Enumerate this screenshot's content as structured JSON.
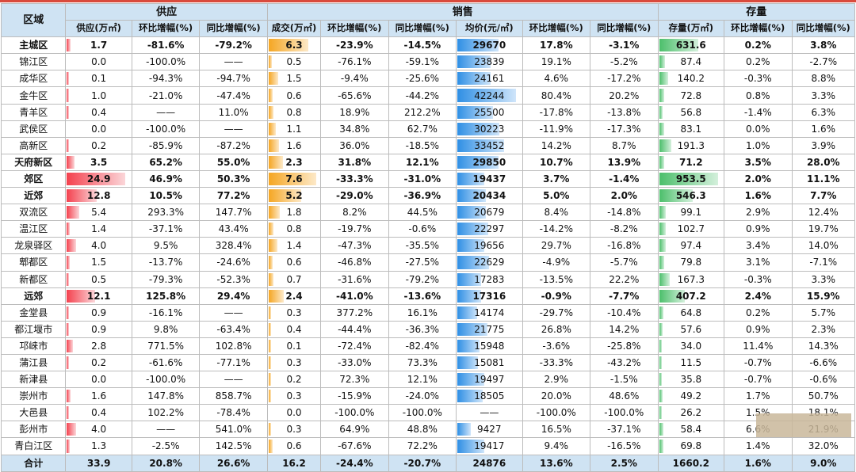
{
  "header": {
    "region": "区域",
    "supply": "供应",
    "sales": "销售",
    "stock": "存量",
    "columns": [
      "供应(万㎡)",
      "环比增幅(%)",
      "同比增幅(%)",
      "成交(万㎡)",
      "环比增幅(%)",
      "同比增幅(%)",
      "均价(元/㎡)",
      "环比增幅(%)",
      "同比增幅(%)",
      "存量(万㎡)",
      "环比增幅(%)",
      "同比增幅(%)"
    ]
  },
  "colors": {
    "supply_bar": "#f4414e",
    "sales_bar": "#f5a623",
    "price_bar": "#2f8fe4",
    "stock_bar": "#4cbf6b",
    "header_bg": "#cfe3f3"
  },
  "rows": [
    {
      "region": "主城区",
      "bold": true,
      "cells": [
        "1.7",
        "-81.6%",
        "-79.2%",
        "6.3",
        "-23.9%",
        "-14.5%",
        "29670",
        "17.8%",
        "-3.1%",
        "631.6",
        "0.2%",
        "3.8%"
      ],
      "bars": {
        "supply": 1.7,
        "sales": 6.3,
        "price": 29670,
        "stock": 631.6
      }
    },
    {
      "region": "锦江区",
      "bold": false,
      "cells": [
        "0.0",
        "-100.0%",
        "——",
        "0.5",
        "-76.1%",
        "-59.1%",
        "23839",
        "19.1%",
        "-5.2%",
        "87.4",
        "0.2%",
        "-2.7%"
      ],
      "bars": {
        "supply": 0.0,
        "sales": 0.5,
        "price": 23839,
        "stock": 87.4
      }
    },
    {
      "region": "成华区",
      "bold": false,
      "cells": [
        "0.1",
        "-94.3%",
        "-94.7%",
        "1.5",
        "-9.4%",
        "-25.6%",
        "24161",
        "4.6%",
        "-17.2%",
        "140.2",
        "-0.3%",
        "8.8%"
      ],
      "bars": {
        "supply": 0.1,
        "sales": 1.5,
        "price": 24161,
        "stock": 140.2
      }
    },
    {
      "region": "金牛区",
      "bold": false,
      "cells": [
        "1.0",
        "-21.0%",
        "-47.4%",
        "0.6",
        "-65.6%",
        "-44.2%",
        "42244",
        "80.4%",
        "20.2%",
        "72.8",
        "0.8%",
        "3.3%"
      ],
      "bars": {
        "supply": 1.0,
        "sales": 0.6,
        "price": 42244,
        "stock": 72.8
      }
    },
    {
      "region": "青羊区",
      "bold": false,
      "cells": [
        "0.4",
        "——",
        "11.0%",
        "0.8",
        "18.9%",
        "212.2%",
        "25500",
        "-17.8%",
        "-13.8%",
        "56.8",
        "-1.4%",
        "6.3%"
      ],
      "bars": {
        "supply": 0.4,
        "sales": 0.8,
        "price": 25500,
        "stock": 56.8
      }
    },
    {
      "region": "武侯区",
      "bold": false,
      "cells": [
        "0.0",
        "-100.0%",
        "——",
        "1.1",
        "34.8%",
        "62.7%",
        "30223",
        "-11.9%",
        "-17.3%",
        "83.1",
        "0.0%",
        "1.6%"
      ],
      "bars": {
        "supply": 0.0,
        "sales": 1.1,
        "price": 30223,
        "stock": 83.1
      }
    },
    {
      "region": "高新区",
      "bold": false,
      "cells": [
        "0.2",
        "-85.9%",
        "-87.2%",
        "1.6",
        "36.0%",
        "-18.5%",
        "33452",
        "14.2%",
        "8.7%",
        "191.3",
        "1.0%",
        "3.9%"
      ],
      "bars": {
        "supply": 0.2,
        "sales": 1.6,
        "price": 33452,
        "stock": 191.3
      }
    },
    {
      "region": "天府新区",
      "bold": true,
      "cells": [
        "3.5",
        "65.2%",
        "55.0%",
        "2.3",
        "31.8%",
        "12.1%",
        "29850",
        "10.7%",
        "13.9%",
        "71.2",
        "3.5%",
        "28.0%"
      ],
      "bars": {
        "supply": 3.5,
        "sales": 2.3,
        "price": 29850,
        "stock": 71.2
      }
    },
    {
      "region": "郊区",
      "bold": true,
      "cells": [
        "24.9",
        "46.9%",
        "50.3%",
        "7.6",
        "-33.3%",
        "-31.0%",
        "19437",
        "3.7%",
        "-1.4%",
        "953.5",
        "2.0%",
        "11.1%"
      ],
      "bars": {
        "supply": 24.9,
        "sales": 7.6,
        "price": 19437,
        "stock": 953.5
      }
    },
    {
      "region": "近郊",
      "bold": true,
      "cells": [
        "12.8",
        "10.5%",
        "77.2%",
        "5.2",
        "-29.0%",
        "-36.9%",
        "20434",
        "5.0%",
        "2.0%",
        "546.3",
        "1.6%",
        "7.7%"
      ],
      "bars": {
        "supply": 12.8,
        "sales": 5.2,
        "price": 20434,
        "stock": 546.3
      }
    },
    {
      "region": "双流区",
      "bold": false,
      "cells": [
        "5.4",
        "293.3%",
        "147.7%",
        "1.8",
        "8.2%",
        "44.5%",
        "20679",
        "8.4%",
        "-14.8%",
        "99.1",
        "2.9%",
        "12.4%"
      ],
      "bars": {
        "supply": 5.4,
        "sales": 1.8,
        "price": 20679,
        "stock": 99.1
      }
    },
    {
      "region": "温江区",
      "bold": false,
      "cells": [
        "1.4",
        "-37.1%",
        "43.4%",
        "0.8",
        "-19.7%",
        "-0.6%",
        "22297",
        "-14.2%",
        "-8.2%",
        "102.7",
        "0.9%",
        "19.7%"
      ],
      "bars": {
        "supply": 1.4,
        "sales": 0.8,
        "price": 22297,
        "stock": 102.7
      }
    },
    {
      "region": "龙泉驿区",
      "bold": false,
      "cells": [
        "4.0",
        "9.5%",
        "328.4%",
        "1.4",
        "-47.3%",
        "-35.5%",
        "19656",
        "29.7%",
        "-16.8%",
        "97.4",
        "3.4%",
        "14.0%"
      ],
      "bars": {
        "supply": 4.0,
        "sales": 1.4,
        "price": 19656,
        "stock": 97.4
      }
    },
    {
      "region": "郫都区",
      "bold": false,
      "cells": [
        "1.5",
        "-13.7%",
        "-24.6%",
        "0.6",
        "-46.8%",
        "-27.5%",
        "22629",
        "-4.9%",
        "-5.7%",
        "79.8",
        "3.1%",
        "-7.1%"
      ],
      "bars": {
        "supply": 1.5,
        "sales": 0.6,
        "price": 22629,
        "stock": 79.8
      }
    },
    {
      "region": "新都区",
      "bold": false,
      "cells": [
        "0.5",
        "-79.3%",
        "-52.3%",
        "0.7",
        "-31.6%",
        "-79.2%",
        "17283",
        "-13.5%",
        "22.2%",
        "167.3",
        "-0.3%",
        "3.3%"
      ],
      "bars": {
        "supply": 0.5,
        "sales": 0.7,
        "price": 17283,
        "stock": 167.3
      }
    },
    {
      "region": "远郊",
      "bold": true,
      "cells": [
        "12.1",
        "125.8%",
        "29.4%",
        "2.4",
        "-41.0%",
        "-13.6%",
        "17316",
        "-0.9%",
        "-7.7%",
        "407.2",
        "2.4%",
        "15.9%"
      ],
      "bars": {
        "supply": 12.1,
        "sales": 2.4,
        "price": 17316,
        "stock": 407.2
      }
    },
    {
      "region": "金堂县",
      "bold": false,
      "cells": [
        "0.9",
        "-16.1%",
        "——",
        "0.3",
        "377.2%",
        "16.1%",
        "14174",
        "-29.7%",
        "-10.4%",
        "64.8",
        "0.2%",
        "5.7%"
      ],
      "bars": {
        "supply": 0.9,
        "sales": 0.3,
        "price": 14174,
        "stock": 64.8
      }
    },
    {
      "region": "都江堰市",
      "bold": false,
      "cells": [
        "0.9",
        "9.8%",
        "-63.4%",
        "0.4",
        "-44.4%",
        "-36.3%",
        "21775",
        "26.8%",
        "14.2%",
        "57.6",
        "0.9%",
        "2.3%"
      ],
      "bars": {
        "supply": 0.9,
        "sales": 0.4,
        "price": 21775,
        "stock": 57.6
      }
    },
    {
      "region": "邛崃市",
      "bold": false,
      "cells": [
        "2.8",
        "771.5%",
        "102.8%",
        "0.1",
        "-72.4%",
        "-82.4%",
        "15948",
        "-3.6%",
        "-25.8%",
        "34.0",
        "11.4%",
        "14.3%"
      ],
      "bars": {
        "supply": 2.8,
        "sales": 0.1,
        "price": 15948,
        "stock": 34.0
      }
    },
    {
      "region": "蒲江县",
      "bold": false,
      "cells": [
        "0.2",
        "-61.6%",
        "-77.1%",
        "0.3",
        "-33.0%",
        "73.3%",
        "15081",
        "-33.3%",
        "-43.2%",
        "11.5",
        "-0.7%",
        "-6.6%"
      ],
      "bars": {
        "supply": 0.2,
        "sales": 0.3,
        "price": 15081,
        "stock": 11.5
      }
    },
    {
      "region": "新津县",
      "bold": false,
      "cells": [
        "0.0",
        "-100.0%",
        "——",
        "0.2",
        "72.3%",
        "12.1%",
        "19497",
        "2.9%",
        "-1.5%",
        "35.8",
        "-0.7%",
        "-0.6%"
      ],
      "bars": {
        "supply": 0.0,
        "sales": 0.2,
        "price": 19497,
        "stock": 35.8
      }
    },
    {
      "region": "崇州市",
      "bold": false,
      "cells": [
        "1.6",
        "147.8%",
        "858.7%",
        "0.3",
        "-15.9%",
        "-24.0%",
        "18505",
        "20.0%",
        "48.6%",
        "49.2",
        "1.7%",
        "50.7%"
      ],
      "bars": {
        "supply": 1.6,
        "sales": 0.3,
        "price": 18505,
        "stock": 49.2
      }
    },
    {
      "region": "大邑县",
      "bold": false,
      "cells": [
        "0.4",
        "102.2%",
        "-78.4%",
        "0.0",
        "-100.0%",
        "-100.0%",
        "——",
        "-100.0%",
        "-100.0%",
        "26.2",
        "1.5%",
        "18.1%"
      ],
      "bars": {
        "supply": 0.4,
        "sales": 0.0,
        "price": 0,
        "stock": 26.2
      }
    },
    {
      "region": "彭州市",
      "bold": false,
      "cells": [
        "4.0",
        "——",
        "541.0%",
        "0.3",
        "64.9%",
        "48.8%",
        "9427",
        "16.5%",
        "-37.1%",
        "58.4",
        "6.6%",
        "21.9%"
      ],
      "bars": {
        "supply": 4.0,
        "sales": 0.3,
        "price": 9427,
        "stock": 58.4
      }
    },
    {
      "region": "青白江区",
      "bold": false,
      "cells": [
        "1.3",
        "-2.5%",
        "142.5%",
        "0.6",
        "-67.6%",
        "72.2%",
        "19417",
        "9.4%",
        "-16.5%",
        "69.8",
        "1.4%",
        "32.0%"
      ],
      "bars": {
        "supply": 1.3,
        "sales": 0.6,
        "price": 19417,
        "stock": 69.8
      }
    }
  ],
  "total": {
    "region": "合计",
    "cells": [
      "33.9",
      "20.8%",
      "26.6%",
      "16.2",
      "-24.4%",
      "-20.7%",
      "24876",
      "13.6%",
      "2.5%",
      "1660.2",
      "1.6%",
      "9.0%"
    ]
  }
}
